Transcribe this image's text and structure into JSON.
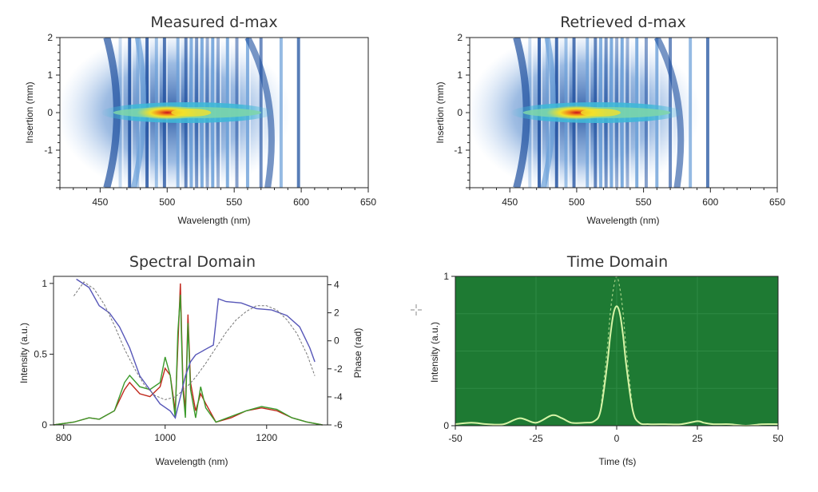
{
  "colors": {
    "heat_bg": "#ffffff",
    "heat_low": "#6a9fd8",
    "heat_mid": "#1d4e9e",
    "heat_hot": "#f2e12a",
    "heat_peak": "#c8101d",
    "spec_red": "#c0281c",
    "spec_green": "#3a9a2a",
    "spec_blue": "#5656b8",
    "spec_gray": "#777777",
    "time_bg": "#1e7a33",
    "time_line": "#d8f5a8"
  },
  "chart_data": [
    {
      "type": "heatmap",
      "title": "Measured d-max",
      "xlabel": "Wavelength (nm)",
      "ylabel": "Insertion (mm)",
      "xlim": [
        420,
        650
      ],
      "ylim": [
        -2,
        2
      ],
      "xticks": [
        "450",
        "500",
        "550",
        "600",
        "650"
      ],
      "yticks": [
        "-1",
        "0",
        "1",
        "2"
      ],
      "peak": {
        "x": 500,
        "y": 0
      }
    },
    {
      "type": "heatmap",
      "title": "Retrieved d-max",
      "xlabel": "Wavelength (nm)",
      "ylabel": "Insertion (mm)",
      "xlim": [
        420,
        650
      ],
      "ylim": [
        -2,
        2
      ],
      "xticks": [
        "450",
        "500",
        "550",
        "600",
        "650"
      ],
      "yticks": [
        "-1",
        "0",
        "1",
        "2"
      ],
      "peak": {
        "x": 500,
        "y": 0
      }
    },
    {
      "type": "line",
      "title": "Spectral Domain",
      "xlabel": "Wavelength (nm)",
      "ylabel": "Intensity (a.u.)",
      "y2label": "Phase (rad)",
      "xlim": [
        780,
        1320
      ],
      "ylim": [
        0,
        1.05
      ],
      "y2lim": [
        -6,
        4.6
      ],
      "xticks": [
        "800",
        "1000",
        "1200"
      ],
      "yticks": [
        "0",
        "0.5",
        "1"
      ],
      "y2ticks": [
        "-6",
        "-4",
        "-2",
        "0",
        "2",
        "4"
      ],
      "series": [
        {
          "name": "",
          "axis": "left",
          "color_key": "spec_red",
          "x": [
            780,
            820,
            850,
            870,
            900,
            920,
            930,
            950,
            970,
            990,
            1000,
            1010,
            1020,
            1025,
            1030,
            1035,
            1040,
            1045,
            1050,
            1060,
            1070,
            1080,
            1100,
            1130,
            1160,
            1190,
            1220,
            1250,
            1280,
            1310
          ],
          "y": [
            0,
            0.02,
            0.05,
            0.04,
            0.1,
            0.25,
            0.3,
            0.22,
            0.2,
            0.27,
            0.4,
            0.35,
            0.1,
            0.55,
            1.0,
            0.3,
            0.1,
            0.78,
            0.3,
            0.1,
            0.22,
            0.15,
            0.02,
            0.05,
            0.1,
            0.12,
            0.1,
            0.05,
            0.02,
            0.0
          ]
        },
        {
          "name": "",
          "axis": "left",
          "color_key": "spec_green",
          "x": [
            780,
            820,
            850,
            870,
            900,
            920,
            930,
            950,
            970,
            990,
            1000,
            1010,
            1020,
            1025,
            1030,
            1035,
            1040,
            1045,
            1050,
            1060,
            1070,
            1080,
            1100,
            1130,
            1160,
            1190,
            1220,
            1250,
            1280,
            1310
          ],
          "y": [
            0,
            0.02,
            0.05,
            0.04,
            0.1,
            0.3,
            0.35,
            0.27,
            0.25,
            0.3,
            0.48,
            0.35,
            0.05,
            0.65,
            0.92,
            0.25,
            0.05,
            0.72,
            0.25,
            0.05,
            0.27,
            0.12,
            0.02,
            0.06,
            0.1,
            0.13,
            0.11,
            0.05,
            0.02,
            0.0
          ]
        },
        {
          "name": "",
          "axis": "right",
          "color_key": "spec_blue",
          "x": [
            825,
            850,
            870,
            890,
            910,
            930,
            950,
            970,
            990,
            1010,
            1020,
            1030,
            1040,
            1050,
            1060,
            1070,
            1080,
            1095,
            1105,
            1120,
            1150,
            1180,
            1210,
            1240,
            1265,
            1285,
            1295
          ],
          "y": [
            4.4,
            3.8,
            2.5,
            2.0,
            1.0,
            -0.5,
            -2.5,
            -3.5,
            -4.5,
            -5.0,
            -5.5,
            -4.0,
            -2.5,
            -1.5,
            -1.0,
            -0.8,
            -0.6,
            -0.3,
            3.0,
            2.8,
            2.7,
            2.3,
            2.2,
            1.8,
            1.0,
            -0.5,
            -1.5
          ]
        },
        {
          "name": "",
          "axis": "right",
          "color_key": "spec_gray",
          "x": [
            820,
            840,
            860,
            880,
            900,
            920,
            940,
            960,
            980,
            1000,
            1020,
            1040,
            1060,
            1080,
            1100,
            1120,
            1140,
            1160,
            1180,
            1200,
            1220,
            1240,
            1260,
            1280,
            1295
          ],
          "y": [
            3.2,
            4.2,
            3.7,
            2.6,
            1.1,
            -0.6,
            -2.0,
            -3.2,
            -3.9,
            -4.2,
            -4.0,
            -3.4,
            -2.6,
            -1.6,
            -0.5,
            0.6,
            1.5,
            2.1,
            2.5,
            2.5,
            2.2,
            1.5,
            0.5,
            -1.0,
            -2.5
          ]
        }
      ]
    },
    {
      "type": "line",
      "title": "Time Domain",
      "xlabel": "Time (fs)",
      "ylabel": "Intensity (a.u.)",
      "xlim": [
        -50,
        50
      ],
      "ylim": [
        0,
        1
      ],
      "xticks": [
        "-50",
        "-25",
        "0",
        "25",
        "50"
      ],
      "yticks": [
        "0",
        "1"
      ],
      "series": [
        {
          "name": "",
          "color_key": "time_line",
          "x": [
            -50,
            -45,
            -40,
            -35,
            -30,
            -25,
            -20,
            -17,
            -14,
            -10,
            -7,
            -5,
            -3,
            -2,
            -1,
            0,
            1,
            2,
            3,
            5,
            7,
            10,
            15,
            20,
            25,
            27,
            30,
            35,
            40,
            45,
            50
          ],
          "y": [
            0.01,
            0.02,
            0.01,
            0.01,
            0.05,
            0.02,
            0.07,
            0.05,
            0.02,
            0.02,
            0.03,
            0.1,
            0.4,
            0.6,
            0.75,
            0.8,
            0.75,
            0.6,
            0.4,
            0.1,
            0.02,
            0.01,
            0.01,
            0.01,
            0.03,
            0.02,
            0.01,
            0.01,
            0.0,
            0.01,
            0.01
          ]
        },
        {
          "name": "",
          "color_key": "time_line",
          "style": "dashed",
          "x": [
            -5,
            -3,
            -2,
            -1,
            0,
            1,
            2,
            3,
            5
          ],
          "y": [
            0.1,
            0.5,
            0.75,
            0.92,
            1.0,
            0.92,
            0.75,
            0.5,
            0.1
          ]
        }
      ]
    }
  ]
}
